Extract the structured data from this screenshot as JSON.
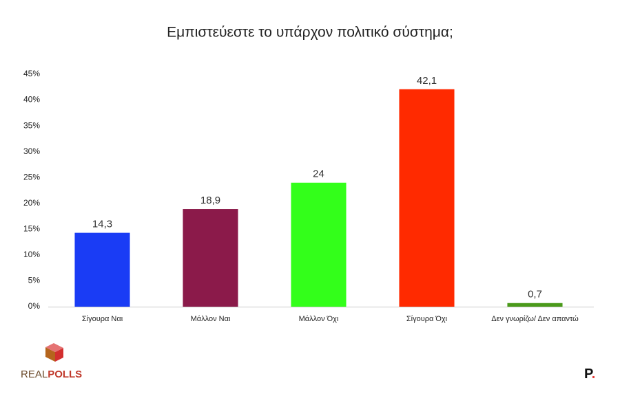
{
  "chart_data": {
    "type": "bar",
    "title": "Εμπιστεύεστε το υπάρχον πολιτικό σύστημα;",
    "categories": [
      "Σίγουρα Ναι",
      "Μάλλον Ναι",
      "Μάλλον Όχι",
      "Σίγουρα Όχι",
      "Δεν γνωρίζω/ Δεν απαντώ"
    ],
    "values": [
      14.3,
      18.9,
      24,
      42.1,
      0.7
    ],
    "value_labels": [
      "14,3",
      "18,9",
      "24",
      "42,1",
      "0,7"
    ],
    "colors": [
      "#1a3cf5",
      "#8b1a4a",
      "#33ff1a",
      "#ff2a00",
      "#4a9a1a"
    ],
    "ylim": [
      0,
      45
    ],
    "yticks": [
      {
        "value": 0,
        "label": "0%"
      },
      {
        "value": 5,
        "label": "5%"
      },
      {
        "value": 10,
        "label": "10%"
      },
      {
        "value": 15,
        "label": "15%"
      },
      {
        "value": 20,
        "label": "20%"
      },
      {
        "value": 25,
        "label": "25%"
      },
      {
        "value": 30,
        "label": "30%"
      },
      {
        "value": 35,
        "label": "35%"
      },
      {
        "value": 40,
        "label": "40%"
      },
      {
        "value": 45,
        "label": "45%"
      }
    ],
    "grid": false
  },
  "logo": [
    "REAL",
    "POLLS"
  ],
  "brand": [
    "P",
    "."
  ]
}
